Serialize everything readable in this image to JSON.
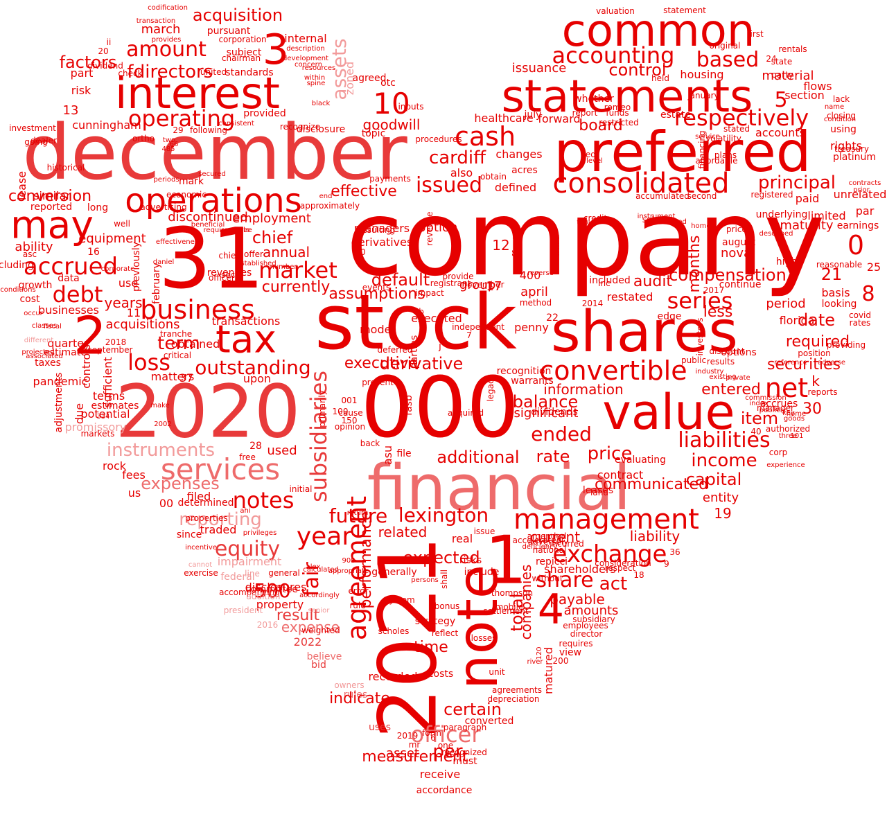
{
  "word_cloud": {
    "palette": [
      "#e60000",
      "#e83a3a",
      "#ee6b6b",
      "#f29a9a",
      "#f6c2c2"
    ],
    "shape": "heart",
    "words": [
      "company",
      "stock",
      "000",
      "2020",
      "december",
      "31",
      "shares",
      "financial",
      "2021",
      "preferred",
      "statements",
      "interest",
      "value",
      "note",
      "1",
      "common",
      "may",
      "tax",
      "operations",
      "services",
      "2",
      "consolidated",
      "management",
      "business",
      "convertible",
      "net",
      "4",
      "3",
      "accrued",
      "cash",
      "market",
      "debt",
      "operating",
      "agreement",
      "year",
      "10",
      "subsidiaries",
      "exchange",
      "issued",
      "loss",
      "notes",
      "fair",
      "based",
      "respectively",
      "accounting",
      "equity",
      "500",
      "series",
      "liabilities",
      "share",
      "income",
      "officer",
      "outstanding",
      "reporting",
      "future",
      "lexington",
      "acquisition",
      "amount",
      "directors",
      "f",
      "principal",
      "control",
      "cardiff",
      "effective",
      "default",
      "certain",
      "assets",
      "instruments",
      "derivative",
      "expenses",
      "0",
      "chief",
      "executive",
      "date",
      "ended",
      "expected",
      "act",
      "capital",
      "additional",
      "price",
      "rate",
      "balance",
      "item",
      "entered",
      "compensation",
      "audit",
      "securities",
      "required",
      "per",
      "goodwill",
      "board",
      "term",
      "conversion",
      "acquisitions",
      "ability",
      "discontinued",
      "employment",
      "annual",
      "currently",
      "assumptions",
      "information",
      "significant",
      "current",
      "liability",
      "time",
      "result",
      "expense",
      "payable",
      "total",
      "companies",
      "amounts",
      "issuance",
      "housing",
      "material",
      "section",
      "flows",
      "rights",
      "platinum",
      "accounts",
      "using",
      "valuation",
      "statement",
      "first",
      "24",
      "rentals",
      "state",
      "party",
      "original",
      "5",
      "8",
      "21",
      "25",
      "basis",
      "looking",
      "covid",
      "rates",
      "earnings",
      "par",
      "paid",
      "unrelated",
      "registered",
      "second",
      "accumulated",
      "sold",
      "months",
      "nova",
      "august",
      "prices",
      "high",
      "continue",
      "period",
      "florida",
      "k",
      "accrues",
      "30",
      "authorized",
      "corp",
      "101",
      "contract",
      "evaluating",
      "entity",
      "19",
      "36",
      "repicci",
      "thompson",
      "consideration",
      "shareholders",
      "subsidiary",
      "employees",
      "director",
      "requires",
      "view",
      "200",
      "matured",
      "120",
      "river",
      "agreements",
      "depreciation",
      "converted",
      "unit",
      "costs",
      "strategy",
      "bonus",
      "system",
      "shall",
      "persons",
      "generally",
      "include",
      "real",
      "risks",
      "issue",
      "related",
      "performance",
      "recorded",
      "asset",
      "uses",
      "rules",
      "owners",
      "bid",
      "believe",
      "2022",
      "property",
      "disclosures",
      "committee",
      "initial",
      "filed",
      "determined",
      "properties",
      "since",
      "traded",
      "impairment",
      "federal",
      "accompanying",
      "general",
      "line",
      "00",
      "us",
      "fees",
      "rock",
      "free",
      "28",
      "used",
      "promissory",
      "markets",
      "potential",
      "estimates",
      "terms",
      "sufficient",
      "pandemic",
      "quarter",
      "taxes",
      "estimate",
      "businesses",
      "cost",
      "growth",
      "data",
      "years",
      "11",
      "use",
      "2018",
      "september",
      "tranche",
      "critical",
      "obtained",
      "37",
      "matters",
      "controls",
      "due",
      "upon",
      "transactions",
      "revenues",
      "sec",
      "chief",
      "officers",
      "well",
      "long",
      "reported",
      "similar",
      "historical",
      "investment",
      "dealer",
      "going",
      "lease",
      "ortho",
      "two",
      "66",
      "485",
      "mark",
      "16",
      "previously",
      "february",
      "including",
      "asc",
      "equipment",
      "13",
      "risk",
      "part",
      "factors",
      "20",
      "ii",
      "dividend",
      "check",
      "subject",
      "chairman",
      "united",
      "cunningham",
      "29",
      "following",
      "provided",
      "disclosure",
      "standards",
      "internal",
      "march",
      "pursuant",
      "corporation",
      "provides",
      "transaction",
      "codification",
      "description",
      "development",
      "concern",
      "within",
      "resources",
      "spine",
      "black",
      "zoned",
      "agreed",
      "otc",
      "inputs",
      "topic",
      "procedures",
      "also",
      "changes",
      "acres",
      "defined",
      "obtain",
      "healthcare",
      "july",
      "forward",
      "report",
      "restricted",
      "stated",
      "whether",
      "estate",
      "financing",
      "service",
      "volatility",
      "plans",
      "affordable",
      "january",
      "held",
      "romeo",
      "funds",
      "red",
      "level",
      "contracts",
      "condition",
      "closing",
      "name",
      "treasury",
      "lack",
      "prior",
      "indicate",
      "executed",
      "recognition",
      "warrants",
      "dividends",
      "22",
      "penny",
      "method",
      "edge",
      "restated",
      "less",
      "included",
      "inc",
      "2014",
      "2017",
      "public",
      "results",
      "discount",
      "options",
      "position",
      "reference",
      "private",
      "adverse",
      "reports",
      "providing",
      "reasonable",
      "limited",
      "underlying",
      "described",
      "maturity",
      "investors",
      "credit",
      "table",
      "third",
      "affect",
      "400",
      "april",
      "17",
      "group",
      "managers",
      "derivatives",
      "resulting",
      "option",
      "50",
      "12",
      "revenue",
      "provide",
      "registrant",
      "events",
      "b",
      "november",
      "7",
      "independent",
      "impact",
      "parties",
      "fasb",
      "model",
      "deferred",
      "j",
      "legacy",
      "acquired",
      "opinion",
      "150",
      "100",
      "001",
      "primarily",
      "present",
      "back",
      "cause",
      "asu",
      "file",
      "measurement",
      "receive",
      "accordance",
      "must",
      "recognized",
      "one",
      "6",
      "2019",
      "form",
      "mr",
      "paragraph",
      "losses",
      "reflect",
      "mobile",
      "settlement",
      "amended",
      "national",
      "without",
      "adversely",
      "accelerated",
      "deficiency",
      "incurred",
      "communicated",
      "leases",
      "land",
      "respect",
      "18",
      "9",
      "key",
      "home",
      "goods",
      "three",
      "40",
      "manager",
      "commission",
      "experience",
      "index",
      "publicly",
      "industry",
      "existing",
      "homes",
      "instrument",
      "continued",
      "president",
      "error",
      "rule",
      "calculated",
      "908",
      "accordingly",
      "alex",
      "senior",
      "2016",
      "addition",
      "appropriate",
      "scholes",
      "weighted",
      "exercise",
      "cannot",
      "incentive",
      "privileges",
      "ahi",
      "return",
      "make",
      "2002",
      "334",
      "associated",
      "fiscal",
      "occur",
      "different",
      "projected",
      "classes",
      "adjustments",
      "conditions",
      "corporate",
      "daniel",
      "effectiveness",
      "beneficial",
      "requirements",
      "require",
      "offer",
      "established",
      "number",
      "consistent",
      "recognize",
      "periods",
      "secured",
      "advertising",
      "end",
      "approximately",
      "economic",
      "payments",
      "reverse",
      "loan",
      "plan",
      "increase",
      "sale",
      "attributable"
    ]
  }
}
